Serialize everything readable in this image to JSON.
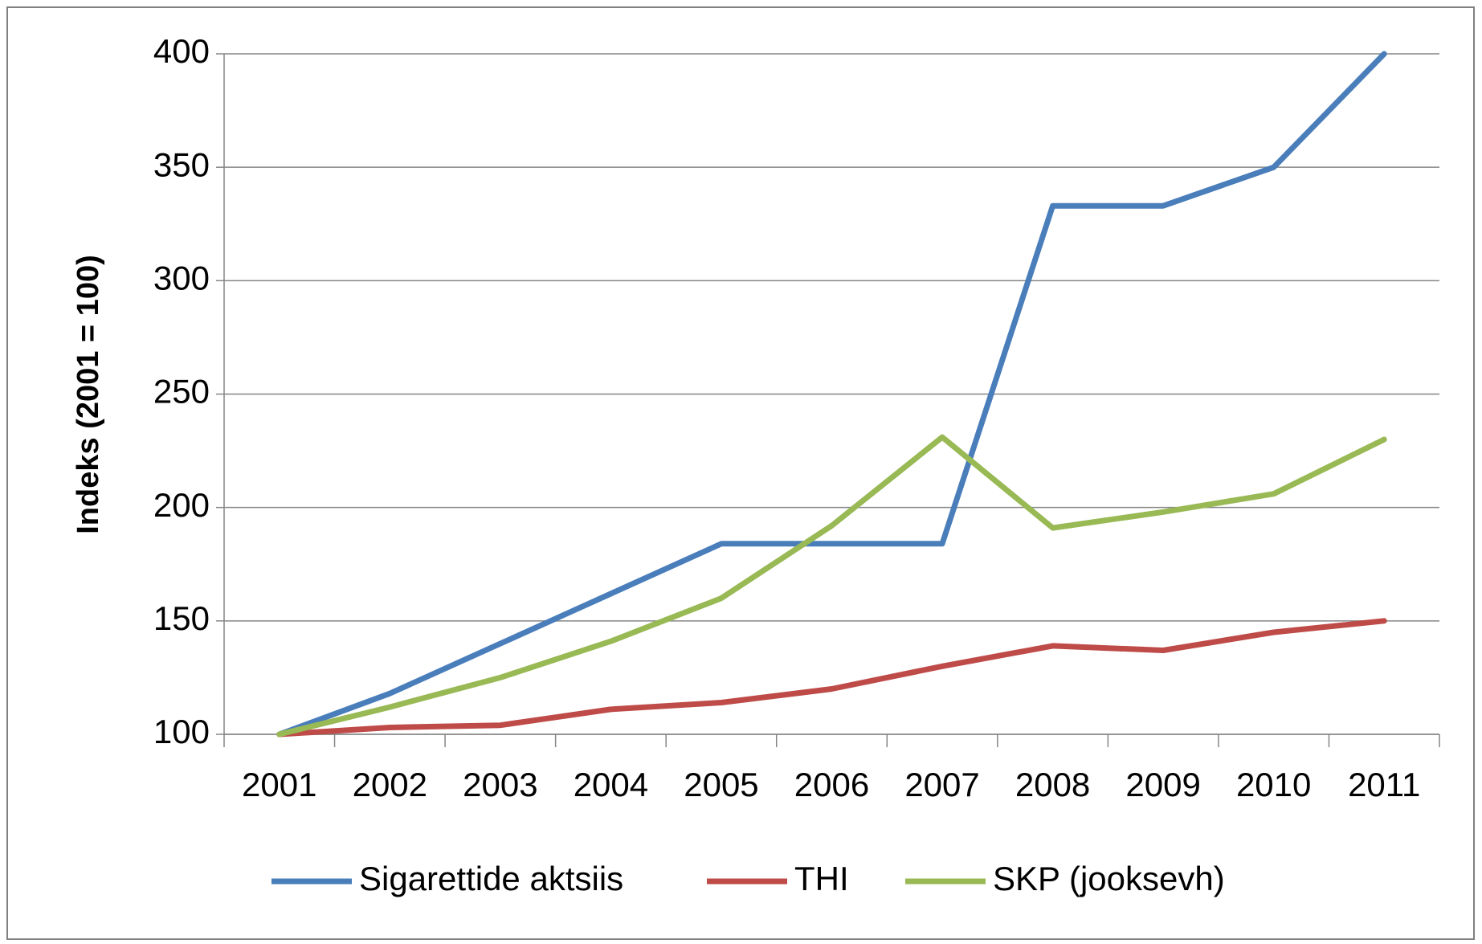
{
  "chart_data": {
    "type": "line",
    "y_label": "Indeks (2001 = 100)",
    "categories": [
      "2001",
      "2002",
      "2003",
      "2004",
      "2005",
      "2006",
      "2007",
      "2008",
      "2009",
      "2010",
      "2011"
    ],
    "series": [
      {
        "name": "Sigarettide aktsiis",
        "color": "#4a7ebb",
        "values": [
          100,
          118,
          140,
          162,
          184,
          184,
          184,
          333,
          333,
          350,
          400
        ]
      },
      {
        "name": "THI",
        "color": "#be4b48",
        "values": [
          100,
          103,
          104,
          111,
          114,
          120,
          130,
          139,
          137,
          145,
          150
        ]
      },
      {
        "name": "SKP (jooksevh)",
        "color": "#98b954",
        "values": [
          100,
          112,
          125,
          141,
          160,
          192,
          231,
          191,
          198,
          206,
          230
        ]
      }
    ],
    "ylim": [
      100,
      400
    ],
    "yticks": [
      100,
      150,
      200,
      250,
      300,
      350,
      400
    ],
    "grid": true,
    "legend": "bottom"
  }
}
